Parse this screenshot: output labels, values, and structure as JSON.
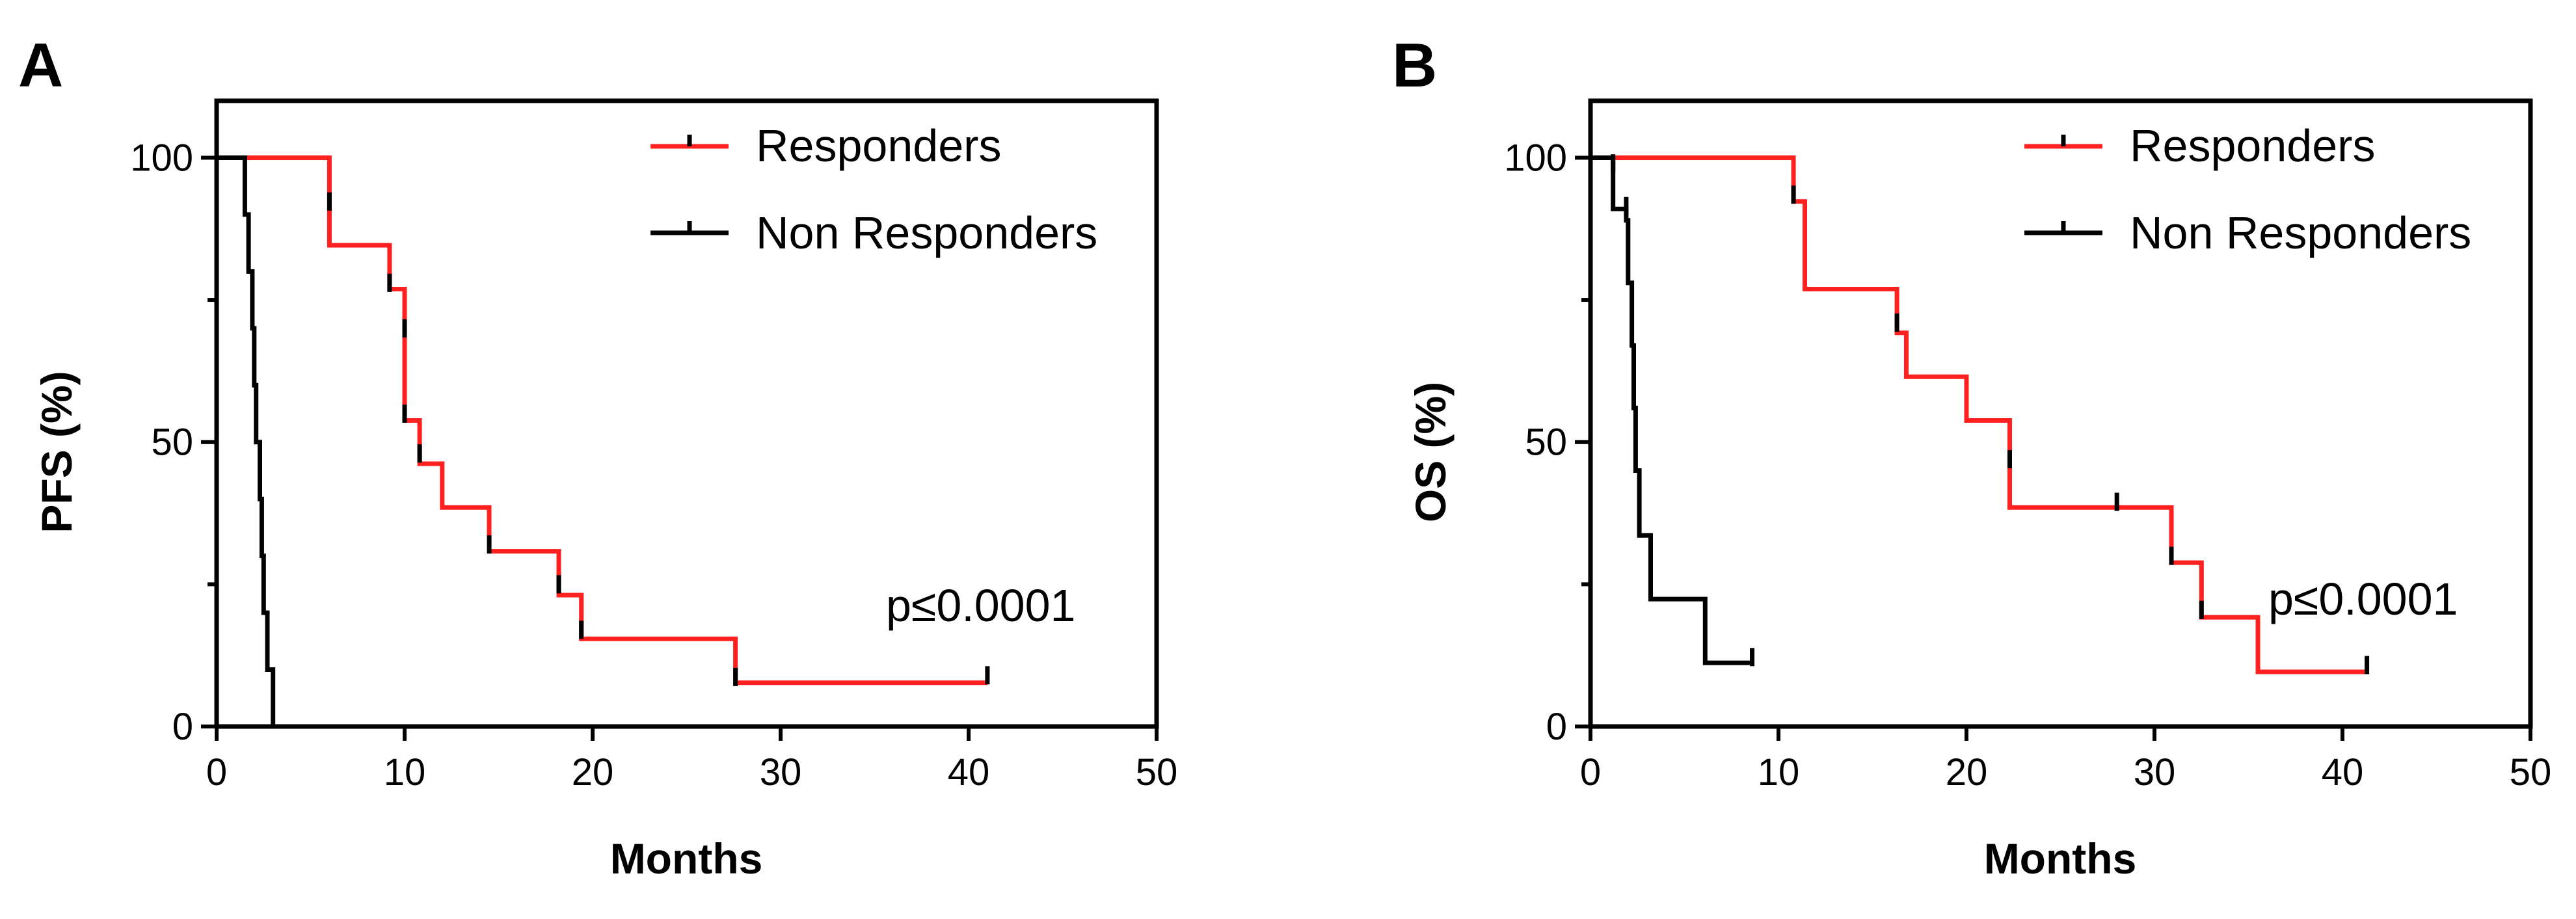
{
  "chart_data": [
    {
      "type": "line",
      "panel_label": "A",
      "xlabel": "Months",
      "ylabel": "PFS (%)",
      "xlim": [
        0,
        50
      ],
      "ylim": [
        0,
        110
      ],
      "xticks": [
        0,
        10,
        20,
        30,
        40,
        50
      ],
      "yticks": [
        0,
        50,
        100
      ],
      "legend_position": "top-right",
      "grid": false,
      "annotation": "p≤0.0001",
      "series": [
        {
          "name": "Responders",
          "color": "#ff2020",
          "steps": [
            [
              0,
              100
            ],
            [
              6,
              100
            ],
            [
              6,
              84.6
            ],
            [
              9.2,
              84.6
            ],
            [
              9.2,
              76.9
            ],
            [
              10,
              76.9
            ],
            [
              10,
              53.8
            ],
            [
              10.8,
              53.8
            ],
            [
              10.8,
              46.2
            ],
            [
              12,
              46.2
            ],
            [
              12,
              38.5
            ],
            [
              14.5,
              38.5
            ],
            [
              14.5,
              30.8
            ],
            [
              18.2,
              30.8
            ],
            [
              18.2,
              23.1
            ],
            [
              19.4,
              23.1
            ],
            [
              19.4,
              15.4
            ],
            [
              27.6,
              15.4
            ],
            [
              27.6,
              7.7
            ],
            [
              41,
              7.7
            ]
          ],
          "censored": [
            [
              6,
              92.3
            ],
            [
              9.2,
              78
            ],
            [
              10,
              70
            ],
            [
              10,
              55
            ],
            [
              10.8,
              48
            ],
            [
              14.5,
              32
            ],
            [
              18.2,
              25
            ],
            [
              19.4,
              17
            ],
            [
              27.6,
              8.7
            ],
            [
              41,
              9
            ]
          ]
        },
        {
          "name": "Non Responders",
          "color": "#000000",
          "steps": [
            [
              0,
              100
            ],
            [
              1.5,
              100
            ],
            [
              1.5,
              90
            ],
            [
              1.7,
              90
            ],
            [
              1.7,
              80
            ],
            [
              1.9,
              80
            ],
            [
              1.9,
              70
            ],
            [
              2,
              70
            ],
            [
              2,
              60
            ],
            [
              2.1,
              60
            ],
            [
              2.1,
              50
            ],
            [
              2.3,
              50
            ],
            [
              2.3,
              40
            ],
            [
              2.4,
              40
            ],
            [
              2.4,
              30
            ],
            [
              2.5,
              30
            ],
            [
              2.5,
              20
            ],
            [
              2.7,
              20
            ],
            [
              2.7,
              10
            ],
            [
              3,
              10
            ],
            [
              3,
              0
            ]
          ],
          "censored": []
        }
      ]
    },
    {
      "type": "line",
      "panel_label": "B",
      "xlabel": "Months",
      "ylabel": "OS (%)",
      "xlim": [
        0,
        50
      ],
      "ylim": [
        0,
        110
      ],
      "xticks": [
        0,
        10,
        20,
        30,
        40,
        50
      ],
      "yticks": [
        0,
        50,
        100
      ],
      "legend_position": "top-right",
      "grid": false,
      "annotation": "p≤0.0001",
      "series": [
        {
          "name": "Responders",
          "color": "#ff2020",
          "steps": [
            [
              0,
              100
            ],
            [
              10.8,
              100
            ],
            [
              10.8,
              92.3
            ],
            [
              11.4,
              92.3
            ],
            [
              11.4,
              76.9
            ],
            [
              16.3,
              76.9
            ],
            [
              16.3,
              69.2
            ],
            [
              16.8,
              69.2
            ],
            [
              16.8,
              61.5
            ],
            [
              20,
              61.5
            ],
            [
              20,
              53.8
            ],
            [
              22.3,
              53.8
            ],
            [
              22.3,
              38.5
            ],
            [
              30.9,
              38.5
            ],
            [
              30.9,
              28.8
            ],
            [
              32.5,
              28.8
            ],
            [
              32.5,
              19.2
            ],
            [
              35.5,
              19.2
            ],
            [
              35.5,
              9.6
            ],
            [
              41.3,
              9.6
            ]
          ],
          "censored": [
            [
              10.8,
              93.5
            ],
            [
              16.3,
              71
            ],
            [
              22.3,
              47
            ],
            [
              28,
              39.5
            ],
            [
              30.9,
              30
            ],
            [
              32.5,
              20.5
            ],
            [
              41.3,
              10.8
            ]
          ]
        },
        {
          "name": "Non Responders",
          "color": "#000000",
          "steps": [
            [
              0,
              100
            ],
            [
              1.2,
              100
            ],
            [
              1.2,
              91
            ],
            [
              1.9,
              91
            ],
            [
              1.9,
              89
            ],
            [
              2,
              89
            ],
            [
              2,
              78
            ],
            [
              2.2,
              78
            ],
            [
              2.2,
              67
            ],
            [
              2.3,
              67
            ],
            [
              2.3,
              56
            ],
            [
              2.4,
              56
            ],
            [
              2.4,
              45
            ],
            [
              2.6,
              45
            ],
            [
              2.6,
              33.6
            ],
            [
              3.2,
              33.6
            ],
            [
              3.2,
              22.4
            ],
            [
              6.1,
              22.4
            ],
            [
              6.1,
              11.2
            ],
            [
              8.6,
              11.2
            ]
          ],
          "censored": [
            [
              1.2,
              99
            ],
            [
              1.9,
              91.5
            ],
            [
              8.6,
              12.2
            ]
          ]
        }
      ]
    }
  ]
}
